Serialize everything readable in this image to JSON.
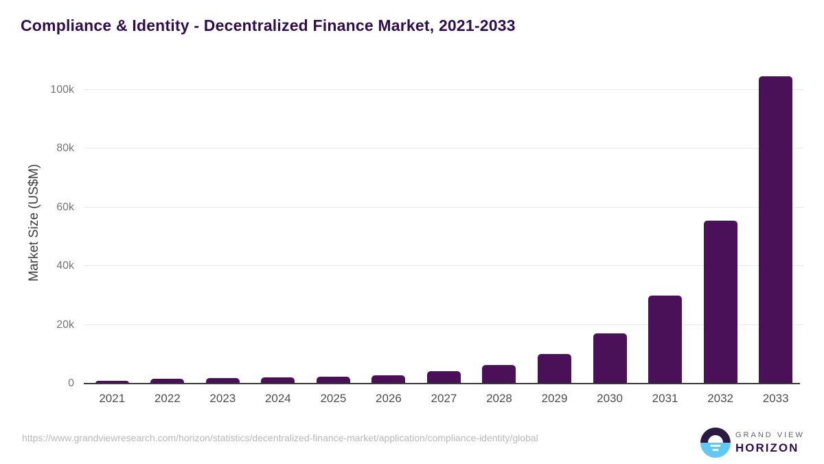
{
  "page": {
    "title": "Compliance & Identity - Decentralized Finance Market, 2021-2033",
    "footer_url": "https://www.grandviewresearch.com/horizon/statistics/decentralized-finance-market/application/compliance-identity/global"
  },
  "logo": {
    "brand_top": "GRAND VIEW",
    "brand_bottom": "HORIZON",
    "circle_top_color": "#2b1a41",
    "circle_bottom_color": "#62c9f2"
  },
  "colors": {
    "bar": "#4a1159",
    "title_text": "#2f0e4b",
    "axis_line": "#3a3a3a",
    "gridline": "#e9e9e9",
    "y_tick_text": "#757575",
    "x_tick_text": "#4d4d4d",
    "footer_text": "#b8b8b8"
  },
  "chart_data": {
    "type": "bar",
    "title": "Compliance & Identity - Decentralized Finance Market, 2021-2033",
    "xlabel": "",
    "ylabel": "Market Size (US$M)",
    "categories": [
      "2021",
      "2022",
      "2023",
      "2024",
      "2025",
      "2026",
      "2027",
      "2028",
      "2029",
      "2030",
      "2031",
      "2032",
      "2033"
    ],
    "values": [
      1000,
      1600,
      1850,
      2100,
      2300,
      2900,
      4200,
      6400,
      10000,
      17100,
      30000,
      55400,
      104700
    ],
    "series_name": "Market Size (US$M)",
    "ylim": [
      0,
      110000
    ],
    "ytick_values": [
      0,
      20000,
      40000,
      60000,
      80000,
      100000
    ],
    "ytick_labels": [
      "0",
      "20k",
      "40k",
      "60k",
      "80k",
      "100k"
    ],
    "grid": "horizontal",
    "legend": "none",
    "bar_color": "#4a1159"
  }
}
